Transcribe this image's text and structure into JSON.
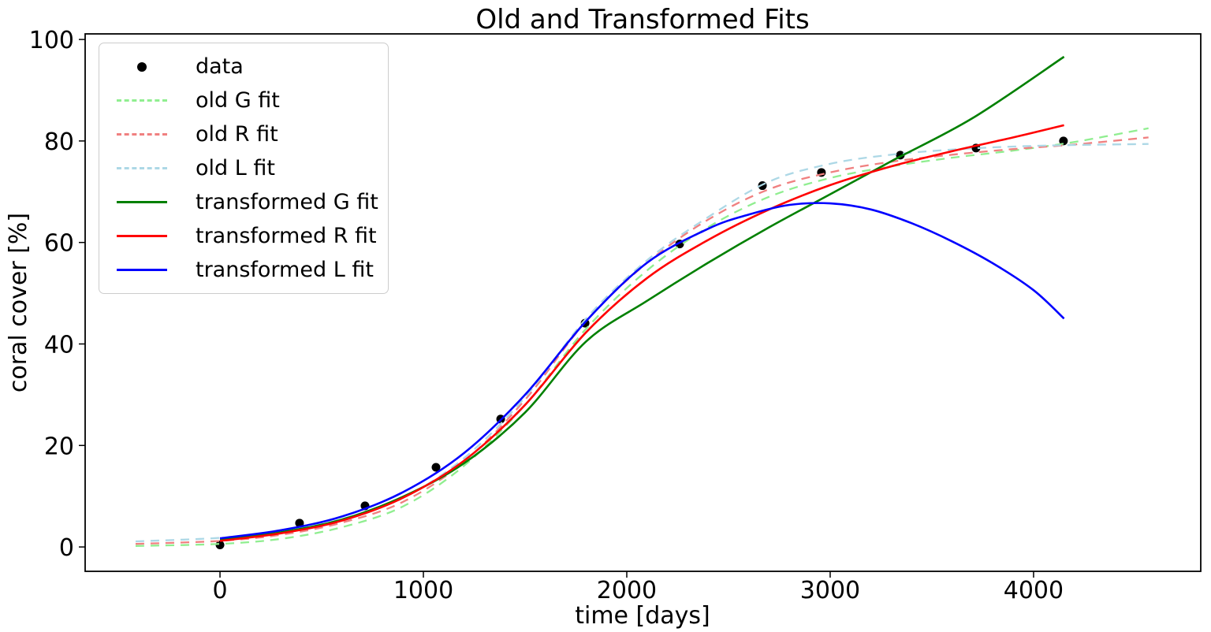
{
  "title": "Old and Transformed Fits",
  "axes": {
    "xlabel": "time [days]",
    "ylabel": "coral cover [%]"
  },
  "legend": {
    "items": [
      {
        "label": "data",
        "marker": "dot",
        "dash": false,
        "color": "#000000"
      },
      {
        "label": "old G fit",
        "marker": "line",
        "dash": true,
        "color": "#90ee90"
      },
      {
        "label": "old R fit",
        "marker": "line",
        "dash": true,
        "color": "#f08080"
      },
      {
        "label": "old L fit",
        "marker": "line",
        "dash": true,
        "color": "#add8e6"
      },
      {
        "label": "transformed G fit",
        "marker": "line",
        "dash": false,
        "color": "#008000"
      },
      {
        "label": "transformed R fit",
        "marker": "line",
        "dash": false,
        "color": "#ff0000"
      },
      {
        "label": "transformed L fit",
        "marker": "line",
        "dash": false,
        "color": "#0000ff"
      }
    ]
  },
  "chart_data": {
    "type": "line",
    "title": "Old and Transformed Fits",
    "xlabel": "time [days]",
    "ylabel": "coral cover [%]",
    "xlim": [
      -663,
      4822
    ],
    "ylim": [
      -4.8,
      101.1
    ],
    "xticks": [
      0,
      1000,
      2000,
      3000,
      4000
    ],
    "yticks": [
      0,
      20,
      40,
      60,
      80,
      100
    ],
    "grid": false,
    "legend_position": "upper left",
    "scatter": {
      "name": "data",
      "color": "#000000",
      "points": [
        [
          0,
          0.4
        ],
        [
          391,
          4.7
        ],
        [
          713,
          8.1
        ],
        [
          1062,
          15.7
        ],
        [
          1380,
          25.2
        ],
        [
          1795,
          44.1
        ],
        [
          2260,
          59.7
        ],
        [
          2667,
          71.2
        ],
        [
          2957,
          73.8
        ],
        [
          3345,
          77.2
        ],
        [
          3717,
          78.6
        ],
        [
          4147,
          80.0
        ]
      ]
    },
    "series": [
      {
        "name": "old G fit",
        "color": "#90ee90",
        "dash": true,
        "points": [
          [
            -415,
            0.2
          ],
          [
            0,
            0.6
          ],
          [
            300,
            1.6
          ],
          [
            600,
            3.9
          ],
          [
            900,
            8.0
          ],
          [
            1200,
            16.0
          ],
          [
            1500,
            28.0
          ],
          [
            1800,
            43.0
          ],
          [
            2100,
            54.5
          ],
          [
            2400,
            63.0
          ],
          [
            2700,
            69.0
          ],
          [
            3000,
            72.7
          ],
          [
            3300,
            75.0
          ],
          [
            3600,
            76.7
          ],
          [
            3900,
            78.1
          ],
          [
            4200,
            79.8
          ],
          [
            4565,
            82.5
          ]
        ]
      },
      {
        "name": "old R fit",
        "color": "#f08080",
        "dash": true,
        "points": [
          [
            -415,
            0.6
          ],
          [
            0,
            1.2
          ],
          [
            300,
            2.4
          ],
          [
            600,
            4.8
          ],
          [
            900,
            8.9
          ],
          [
            1200,
            16.8
          ],
          [
            1500,
            29.0
          ],
          [
            1800,
            44.5
          ],
          [
            2100,
            56.0
          ],
          [
            2400,
            64.5
          ],
          [
            2700,
            70.5
          ],
          [
            3000,
            73.8
          ],
          [
            3300,
            75.9
          ],
          [
            3600,
            77.3
          ],
          [
            3900,
            78.4
          ],
          [
            4200,
            79.3
          ],
          [
            4565,
            80.7
          ]
        ]
      },
      {
        "name": "old L fit",
        "color": "#add8e6",
        "dash": true,
        "points": [
          [
            -415,
            1.1
          ],
          [
            0,
            1.8
          ],
          [
            300,
            3.1
          ],
          [
            600,
            5.5
          ],
          [
            900,
            9.7
          ],
          [
            1200,
            17.5
          ],
          [
            1500,
            29.5
          ],
          [
            1800,
            45.0
          ],
          [
            2100,
            56.5
          ],
          [
            2400,
            65.0
          ],
          [
            2700,
            72.0
          ],
          [
            3000,
            75.5
          ],
          [
            3300,
            77.3
          ],
          [
            3600,
            78.3
          ],
          [
            3900,
            78.9
          ],
          [
            4200,
            79.2
          ],
          [
            4565,
            79.4
          ]
        ]
      },
      {
        "name": "transformed G fit",
        "color": "#008000",
        "dash": false,
        "points": [
          [
            0,
            1.4
          ],
          [
            300,
            2.9
          ],
          [
            600,
            5.4
          ],
          [
            900,
            9.9
          ],
          [
            1200,
            16.5
          ],
          [
            1500,
            26.5
          ],
          [
            1800,
            40.5
          ],
          [
            2100,
            48.5
          ],
          [
            2400,
            56.0
          ],
          [
            2700,
            63.0
          ],
          [
            3000,
            69.5
          ],
          [
            3300,
            76.0
          ],
          [
            3700,
            84.5
          ],
          [
            4150,
            96.6
          ]
        ]
      },
      {
        "name": "transformed R fit",
        "color": "#ff0000",
        "dash": false,
        "points": [
          [
            0,
            1.2
          ],
          [
            300,
            2.7
          ],
          [
            600,
            5.2
          ],
          [
            900,
            9.7
          ],
          [
            1200,
            17.0
          ],
          [
            1500,
            28.0
          ],
          [
            1800,
            42.3
          ],
          [
            2100,
            53.0
          ],
          [
            2400,
            60.5
          ],
          [
            2700,
            66.5
          ],
          [
            3000,
            71.3
          ],
          [
            3300,
            75.0
          ],
          [
            3600,
            78.0
          ],
          [
            3900,
            80.7
          ],
          [
            4150,
            83.1
          ]
        ]
      },
      {
        "name": "transformed L fit",
        "color": "#0000ff",
        "dash": false,
        "points": [
          [
            0,
            1.7
          ],
          [
            300,
            3.3
          ],
          [
            600,
            6.0
          ],
          [
            900,
            10.8
          ],
          [
            1200,
            18.5
          ],
          [
            1500,
            30.0
          ],
          [
            1800,
            44.5
          ],
          [
            2100,
            56.0
          ],
          [
            2400,
            62.7
          ],
          [
            2600,
            65.5
          ],
          [
            2800,
            67.4
          ],
          [
            3000,
            67.7
          ],
          [
            3200,
            66.5
          ],
          [
            3400,
            63.8
          ],
          [
            3600,
            60.2
          ],
          [
            3800,
            55.9
          ],
          [
            4000,
            50.6
          ],
          [
            4150,
            45.0
          ]
        ]
      }
    ]
  }
}
